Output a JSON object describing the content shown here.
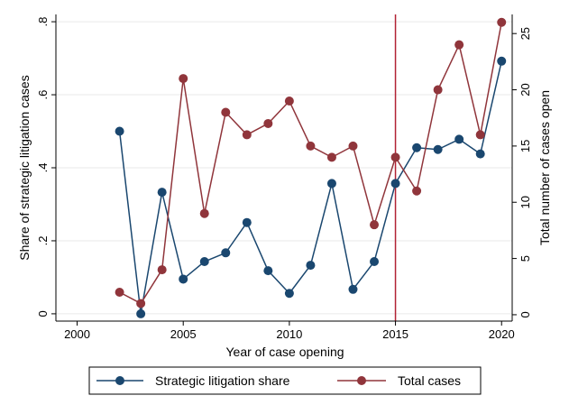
{
  "chart_data": {
    "type": "line",
    "xlabel": "Year of case opening",
    "ylabel_left": "Share of strategic litigation cases",
    "ylabel_right": "Total number of cases open",
    "xlim": [
      1999,
      2020.5
    ],
    "ylim_left": [
      -0.02,
      0.82
    ],
    "ylim_right": [
      -0.566,
      26.7
    ],
    "x_ticks": [
      2000,
      2005,
      2010,
      2015,
      2020
    ],
    "y_left_ticks": [
      {
        "value": 0,
        "label": "0"
      },
      {
        "value": 0.2,
        "label": ".2"
      },
      {
        "value": 0.4,
        "label": ".4"
      },
      {
        "value": 0.6,
        "label": ".6"
      },
      {
        "value": 0.8,
        "label": ".8"
      }
    ],
    "y_right_ticks": [
      0,
      5,
      10,
      15,
      20,
      25
    ],
    "grid": true,
    "legend_position": "bottom",
    "reference_line": {
      "x": 2015,
      "color": "#b22234"
    },
    "series": [
      {
        "name": "Strategic litigation share",
        "axis": "left",
        "color": "#1a476f",
        "x": [
          2002,
          2003,
          2004,
          2005,
          2006,
          2007,
          2008,
          2009,
          2010,
          2011,
          2012,
          2013,
          2014,
          2015,
          2016,
          2017,
          2018,
          2019,
          2020
        ],
        "values": [
          0.5,
          0.0,
          0.333,
          0.095,
          0.143,
          0.167,
          0.25,
          0.118,
          0.056,
          0.133,
          0.357,
          0.067,
          0.143,
          0.357,
          0.455,
          0.45,
          0.478,
          0.438,
          0.692
        ]
      },
      {
        "name": "Total cases",
        "axis": "right",
        "color": "#90353b",
        "x": [
          2002,
          2003,
          2004,
          2005,
          2006,
          2007,
          2008,
          2009,
          2010,
          2011,
          2012,
          2013,
          2014,
          2015,
          2016,
          2017,
          2018,
          2019,
          2020
        ],
        "values": [
          2,
          1,
          4,
          21,
          9,
          18,
          16,
          17,
          19,
          15,
          14,
          15,
          8,
          14,
          11,
          20,
          24,
          16,
          26
        ]
      }
    ]
  }
}
